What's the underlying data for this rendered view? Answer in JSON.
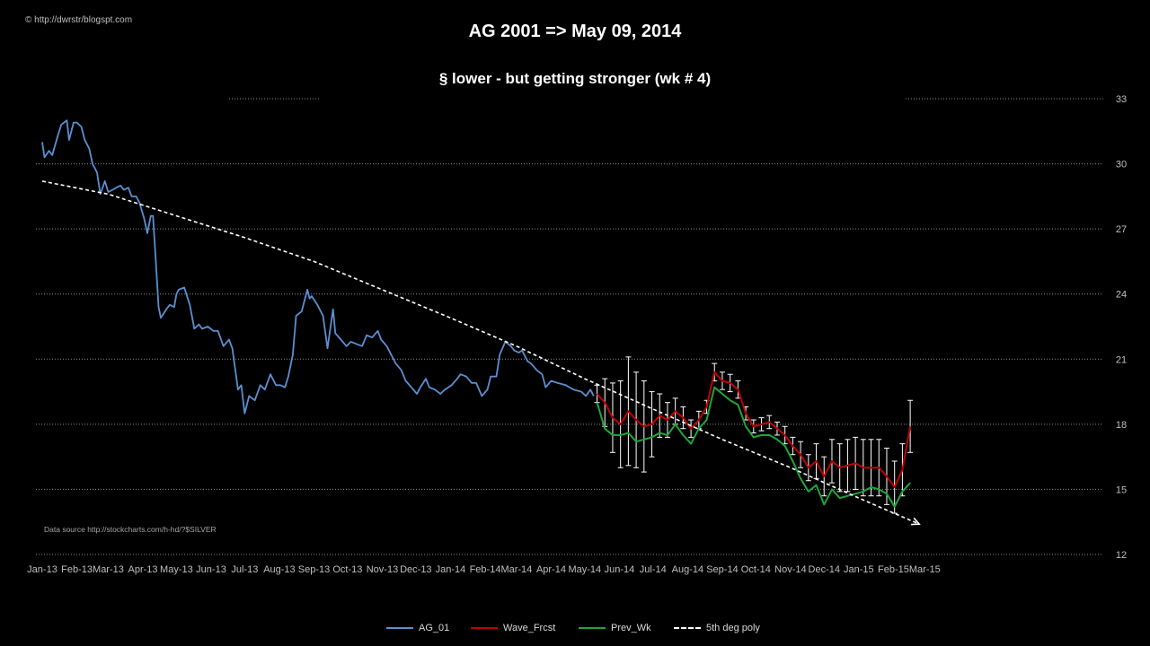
{
  "header": {
    "copyright": "© http://dwrstr/blogspt.com",
    "title": "AG 2001 => May 09, 2014",
    "subtitle": "§  lower  - but getting stronger  (wk # 4)",
    "source": "Data source http://stockcharts.com/h-hd/?$SILVER"
  },
  "colors": {
    "background": "#000000",
    "ag": "#5b8fd0",
    "wave": "#c00000",
    "prev": "#1ea53a",
    "trend": "#ffffff",
    "errorbar": "#ffffff",
    "grid": "#8c8c8c"
  },
  "chart_data": {
    "type": "line",
    "title": "AG 2001 => May 09, 2014",
    "subtitle": "§  lower  - but getting stronger  (wk # 4)",
    "x_ticks": [
      "Jan-13",
      "Feb-13",
      "Mar-13",
      "Apr-13",
      "May-13",
      "Jun-13",
      "Jul-13",
      "Aug-13",
      "Sep-13",
      "Oct-13",
      "Nov-13",
      "Dec-13",
      "Jan-14",
      "Feb-14",
      "Mar-14",
      "Apr-14",
      "May-14",
      "Jun-14",
      "Jul-14",
      "Aug-14",
      "Sep-14",
      "Oct-14",
      "Nov-14",
      "Dec-14",
      "Jan-15",
      "Feb-15",
      "Mar-15"
    ],
    "y_axis": {
      "side": "right",
      "min": 12,
      "max": 33,
      "ticks": [
        12,
        15,
        18,
        21,
        24,
        27,
        30,
        33
      ]
    },
    "grid": "horizontal dotted",
    "legend_position": "bottom",
    "legend": [
      "AG_01",
      "Wave_Frcst",
      "Prev_Wk",
      "5th deg poly"
    ],
    "series": [
      {
        "name": "AG_01",
        "points": [
          [
            "2013-01-01",
            31.0
          ],
          [
            "2013-01-03",
            30.3
          ],
          [
            "2013-01-07",
            30.6
          ],
          [
            "2013-01-10",
            30.4
          ],
          [
            "2013-01-15",
            31.3
          ],
          [
            "2013-01-18",
            31.8
          ],
          [
            "2013-01-23",
            32.0
          ],
          [
            "2013-01-25",
            31.1
          ],
          [
            "2013-01-29",
            31.9
          ],
          [
            "2013-02-01",
            31.9
          ],
          [
            "2013-02-05",
            31.7
          ],
          [
            "2013-02-08",
            31.1
          ],
          [
            "2013-02-12",
            30.7
          ],
          [
            "2013-02-15",
            30.0
          ],
          [
            "2013-02-19",
            29.6
          ],
          [
            "2013-02-22",
            28.6
          ],
          [
            "2013-02-26",
            29.2
          ],
          [
            "2013-03-01",
            28.7
          ],
          [
            "2013-03-05",
            28.8
          ],
          [
            "2013-03-08",
            28.9
          ],
          [
            "2013-03-12",
            29.0
          ],
          [
            "2013-03-15",
            28.8
          ],
          [
            "2013-03-19",
            28.9
          ],
          [
            "2013-03-22",
            28.5
          ],
          [
            "2013-03-26",
            28.5
          ],
          [
            "2013-03-29",
            28.2
          ],
          [
            "2013-04-02",
            27.5
          ],
          [
            "2013-04-05",
            26.8
          ],
          [
            "2013-04-08",
            27.6
          ],
          [
            "2013-04-10",
            27.6
          ],
          [
            "2013-04-12",
            26.0
          ],
          [
            "2013-04-15",
            23.4
          ],
          [
            "2013-04-17",
            22.9
          ],
          [
            "2013-04-22",
            23.3
          ],
          [
            "2013-04-25",
            23.5
          ],
          [
            "2013-04-29",
            23.4
          ],
          [
            "2013-05-01",
            24.0
          ],
          [
            "2013-05-03",
            24.2
          ],
          [
            "2013-05-08",
            24.3
          ],
          [
            "2013-05-13",
            23.5
          ],
          [
            "2013-05-17",
            22.4
          ],
          [
            "2013-05-21",
            22.6
          ],
          [
            "2013-05-24",
            22.4
          ],
          [
            "2013-05-29",
            22.5
          ],
          [
            "2013-06-03",
            22.3
          ],
          [
            "2013-06-07",
            22.3
          ],
          [
            "2013-06-12",
            21.6
          ],
          [
            "2013-06-17",
            21.9
          ],
          [
            "2013-06-20",
            21.5
          ],
          [
            "2013-06-25",
            19.6
          ],
          [
            "2013-06-28",
            19.8
          ],
          [
            "2013-07-01",
            18.5
          ],
          [
            "2013-07-05",
            19.3
          ],
          [
            "2013-07-10",
            19.1
          ],
          [
            "2013-07-15",
            19.8
          ],
          [
            "2013-07-19",
            19.6
          ],
          [
            "2013-07-24",
            20.3
          ],
          [
            "2013-07-29",
            19.8
          ],
          [
            "2013-08-02",
            19.8
          ],
          [
            "2013-08-06",
            19.7
          ],
          [
            "2013-08-09",
            20.2
          ],
          [
            "2013-08-13",
            21.2
          ],
          [
            "2013-08-16",
            23.0
          ],
          [
            "2013-08-21",
            23.2
          ],
          [
            "2013-08-26",
            24.2
          ],
          [
            "2013-08-28",
            23.8
          ],
          [
            "2013-08-30",
            23.9
          ],
          [
            "2013-09-04",
            23.5
          ],
          [
            "2013-09-09",
            23.0
          ],
          [
            "2013-09-13",
            21.5
          ],
          [
            "2013-09-18",
            23.3
          ],
          [
            "2013-09-20",
            22.2
          ],
          [
            "2013-09-25",
            21.9
          ],
          [
            "2013-09-30",
            21.6
          ],
          [
            "2013-10-04",
            21.8
          ],
          [
            "2013-10-09",
            21.7
          ],
          [
            "2013-10-14",
            21.6
          ],
          [
            "2013-10-18",
            22.1
          ],
          [
            "2013-10-23",
            22.0
          ],
          [
            "2013-10-28",
            22.3
          ],
          [
            "2013-10-31",
            21.9
          ],
          [
            "2013-11-05",
            21.6
          ],
          [
            "2013-11-08",
            21.3
          ],
          [
            "2013-11-13",
            20.8
          ],
          [
            "2013-11-18",
            20.5
          ],
          [
            "2013-11-22",
            20.0
          ],
          [
            "2013-11-27",
            19.7
          ],
          [
            "2013-12-02",
            19.4
          ],
          [
            "2013-12-05",
            19.7
          ],
          [
            "2013-12-10",
            20.1
          ],
          [
            "2013-12-13",
            19.7
          ],
          [
            "2013-12-18",
            19.6
          ],
          [
            "2013-12-23",
            19.4
          ],
          [
            "2013-12-27",
            19.6
          ],
          [
            "2014-01-02",
            19.8
          ],
          [
            "2014-01-07",
            20.1
          ],
          [
            "2014-01-10",
            20.3
          ],
          [
            "2014-01-15",
            20.2
          ],
          [
            "2014-01-20",
            19.9
          ],
          [
            "2014-01-24",
            19.9
          ],
          [
            "2014-01-29",
            19.3
          ],
          [
            "2014-02-03",
            19.6
          ],
          [
            "2014-02-06",
            20.2
          ],
          [
            "2014-02-11",
            20.2
          ],
          [
            "2014-02-14",
            21.2
          ],
          [
            "2014-02-19",
            21.8
          ],
          [
            "2014-02-24",
            21.6
          ],
          [
            "2014-02-27",
            21.4
          ],
          [
            "2014-03-03",
            21.3
          ],
          [
            "2014-03-06",
            21.4
          ],
          [
            "2014-03-11",
            20.9
          ],
          [
            "2014-03-14",
            20.8
          ],
          [
            "2014-03-19",
            20.5
          ],
          [
            "2014-03-24",
            20.3
          ],
          [
            "2014-03-27",
            19.7
          ],
          [
            "2014-04-01",
            20.0
          ],
          [
            "2014-04-07",
            19.9
          ],
          [
            "2014-04-14",
            19.8
          ],
          [
            "2014-04-21",
            19.6
          ],
          [
            "2014-04-28",
            19.5
          ],
          [
            "2014-05-02",
            19.3
          ],
          [
            "2014-05-06",
            19.6
          ],
          [
            "2014-05-09",
            19.3
          ]
        ]
      },
      {
        "name": "Wave_Frcst",
        "points": [
          [
            "2014-05-12",
            19.4
          ],
          [
            "2014-05-19",
            19.0
          ],
          [
            "2014-05-26",
            18.3
          ],
          [
            "2014-06-02",
            18.0
          ],
          [
            "2014-06-09",
            18.6
          ],
          [
            "2014-06-16",
            18.2
          ],
          [
            "2014-06-23",
            17.9
          ],
          [
            "2014-06-30",
            18.0
          ],
          [
            "2014-07-07",
            18.4
          ],
          [
            "2014-07-14",
            18.2
          ],
          [
            "2014-07-21",
            18.6
          ],
          [
            "2014-07-28",
            18.3
          ],
          [
            "2014-08-04",
            17.8
          ],
          [
            "2014-08-11",
            18.2
          ],
          [
            "2014-08-18",
            18.8
          ],
          [
            "2014-08-25",
            20.4
          ],
          [
            "2014-09-01",
            20.0
          ],
          [
            "2014-09-08",
            19.9
          ],
          [
            "2014-09-15",
            19.6
          ],
          [
            "2014-09-22",
            18.5
          ],
          [
            "2014-09-29",
            17.9
          ],
          [
            "2014-10-06",
            18.0
          ],
          [
            "2014-10-13",
            18.1
          ],
          [
            "2014-10-20",
            17.8
          ],
          [
            "2014-10-27",
            17.5
          ],
          [
            "2014-11-03",
            17.0
          ],
          [
            "2014-11-10",
            16.6
          ],
          [
            "2014-11-17",
            16.0
          ],
          [
            "2014-11-24",
            16.3
          ],
          [
            "2014-12-01",
            15.6
          ],
          [
            "2014-12-08",
            16.3
          ],
          [
            "2014-12-15",
            16.0
          ],
          [
            "2014-12-22",
            16.1
          ],
          [
            "2014-12-29",
            16.2
          ],
          [
            "2015-01-05",
            16.0
          ],
          [
            "2015-01-12",
            16.0
          ],
          [
            "2015-01-19",
            16.0
          ],
          [
            "2015-01-26",
            15.6
          ],
          [
            "2015-02-02",
            15.1
          ],
          [
            "2015-02-09",
            15.9
          ],
          [
            "2015-02-16",
            17.9
          ]
        ]
      },
      {
        "name": "Prev_Wk",
        "points": [
          [
            "2014-05-12",
            19.0
          ],
          [
            "2014-05-19",
            17.8
          ],
          [
            "2014-05-26",
            17.5
          ],
          [
            "2014-06-02",
            17.5
          ],
          [
            "2014-06-09",
            17.6
          ],
          [
            "2014-06-16",
            17.2
          ],
          [
            "2014-06-23",
            17.3
          ],
          [
            "2014-06-30",
            17.4
          ],
          [
            "2014-07-07",
            17.6
          ],
          [
            "2014-07-14",
            17.5
          ],
          [
            "2014-07-21",
            18.0
          ],
          [
            "2014-07-28",
            17.5
          ],
          [
            "2014-08-04",
            17.1
          ],
          [
            "2014-08-11",
            17.8
          ],
          [
            "2014-08-18",
            18.2
          ],
          [
            "2014-08-25",
            19.7
          ],
          [
            "2014-09-01",
            19.4
          ],
          [
            "2014-09-08",
            19.1
          ],
          [
            "2014-09-15",
            18.9
          ],
          [
            "2014-09-22",
            17.9
          ],
          [
            "2014-09-29",
            17.4
          ],
          [
            "2014-10-06",
            17.5
          ],
          [
            "2014-10-13",
            17.5
          ],
          [
            "2014-10-20",
            17.3
          ],
          [
            "2014-10-27",
            17.0
          ],
          [
            "2014-11-03",
            16.3
          ],
          [
            "2014-11-10",
            15.5
          ],
          [
            "2014-11-17",
            14.9
          ],
          [
            "2014-11-24",
            15.2
          ],
          [
            "2014-12-01",
            14.3
          ],
          [
            "2014-12-08",
            15.0
          ],
          [
            "2014-12-15",
            14.6
          ],
          [
            "2014-12-22",
            14.7
          ],
          [
            "2014-12-29",
            14.8
          ],
          [
            "2015-01-05",
            14.9
          ],
          [
            "2015-01-12",
            15.1
          ],
          [
            "2015-01-19",
            15.0
          ],
          [
            "2015-01-26",
            14.8
          ],
          [
            "2015-02-02",
            14.2
          ],
          [
            "2015-02-09",
            14.9
          ],
          [
            "2015-02-16",
            15.3
          ]
        ]
      },
      {
        "name": "5th deg poly",
        "points": [
          [
            "2013-01-01",
            29.2
          ],
          [
            "2013-03-01",
            28.6
          ],
          [
            "2013-05-01",
            27.6
          ],
          [
            "2013-07-01",
            26.6
          ],
          [
            "2013-09-01",
            25.5
          ],
          [
            "2013-11-01",
            24.2
          ],
          [
            "2014-01-01",
            22.9
          ],
          [
            "2014-03-01",
            21.6
          ],
          [
            "2014-05-01",
            20.1
          ],
          [
            "2014-07-01",
            18.7
          ],
          [
            "2014-09-01",
            17.3
          ],
          [
            "2014-11-01",
            16.0
          ],
          [
            "2015-01-01",
            14.6
          ],
          [
            "2015-02-24",
            13.4
          ]
        ]
      }
    ],
    "error_bars": {
      "series": "Wave_Frcst",
      "from_date": "2014-05-12",
      "to_date": "2015-02-16",
      "half_width": [
        0.4,
        1.1,
        1.6,
        2.0,
        2.5,
        2.2,
        2.1,
        1.5,
        1.0,
        0.8,
        0.6,
        0.5,
        0.4,
        0.4,
        0.3,
        0.4,
        0.4,
        0.4,
        0.4,
        0.3,
        0.3,
        0.3,
        0.3,
        0.3,
        0.4,
        0.4,
        0.6,
        0.6,
        0.8,
        0.9,
        1.0,
        1.1,
        1.2,
        1.2,
        1.3,
        1.3,
        1.3,
        1.3,
        1.2,
        1.2,
        1.2
      ]
    }
  }
}
